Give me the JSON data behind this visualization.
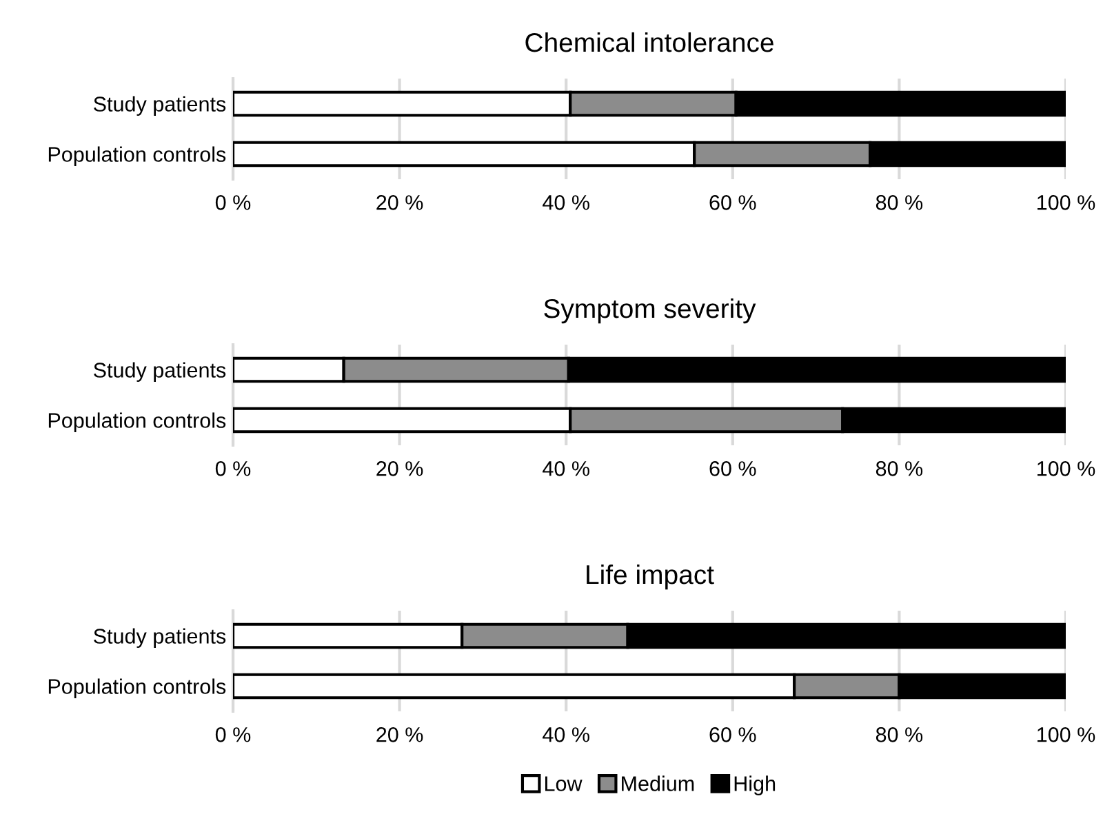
{
  "chart_data": [
    {
      "type": "bar",
      "title": "Chemical intolerance",
      "orientation": "horizontal",
      "stacked": true,
      "categories": [
        "Study patients",
        "Population controls"
      ],
      "series": [
        {
          "color": "#ffffff",
          "values": [
            40.5,
            55.4
          ]
        },
        {
          "color": "#8c8c8c",
          "values": [
            19.9,
            21.1
          ]
        },
        {
          "color": "#000000",
          "values": [
            39.6,
            23.5
          ]
        }
      ],
      "xlim": [
        0,
        100
      ],
      "xticks": [
        {
          "value": 0,
          "label": "0 %"
        },
        {
          "value": 20,
          "label": "20 %"
        },
        {
          "value": 40,
          "label": "40 %"
        },
        {
          "value": 60,
          "label": "60 %"
        },
        {
          "value": 80,
          "label": "80 %"
        },
        {
          "value": 100,
          "label": "100 %"
        }
      ],
      "grid": "x"
    },
    {
      "type": "bar",
      "title": "Symptom severity",
      "orientation": "horizontal",
      "stacked": true,
      "categories": [
        "Study patients",
        "Population controls"
      ],
      "series": [
        {
          "color": "#ffffff",
          "values": [
            13.3,
            40.5
          ]
        },
        {
          "color": "#8c8c8c",
          "values": [
            27.0,
            32.7
          ]
        },
        {
          "color": "#000000",
          "values": [
            59.7,
            26.8
          ]
        }
      ],
      "xlim": [
        0,
        100
      ],
      "xticks": [
        {
          "value": 0,
          "label": "0 %"
        },
        {
          "value": 20,
          "label": "20 %"
        },
        {
          "value": 40,
          "label": "40 %"
        },
        {
          "value": 60,
          "label": "60 %"
        },
        {
          "value": 80,
          "label": "80 %"
        },
        {
          "value": 100,
          "label": "100 %"
        }
      ],
      "grid": "x"
    },
    {
      "type": "bar",
      "title": "Life impact",
      "orientation": "horizontal",
      "stacked": true,
      "categories": [
        "Study patients",
        "Population controls"
      ],
      "series": [
        {
          "name": "Low",
          "color": "#ffffff",
          "values": [
            27.5,
            67.4
          ]
        },
        {
          "name": "Medium",
          "color": "#8c8c8c",
          "values": [
            19.9,
            12.6
          ]
        },
        {
          "name": "High",
          "color": "#000000",
          "values": [
            52.6,
            20.0
          ]
        }
      ],
      "xlim": [
        0,
        100
      ],
      "xticks": [
        {
          "value": 0,
          "label": "0 %"
        },
        {
          "value": 20,
          "label": "20 %"
        },
        {
          "value": 40,
          "label": "40 %"
        },
        {
          "value": 60,
          "label": "60 %"
        },
        {
          "value": 80,
          "label": "80 %"
        },
        {
          "value": 100,
          "label": "100 %"
        }
      ],
      "grid": "x",
      "legend": "bottom"
    }
  ]
}
